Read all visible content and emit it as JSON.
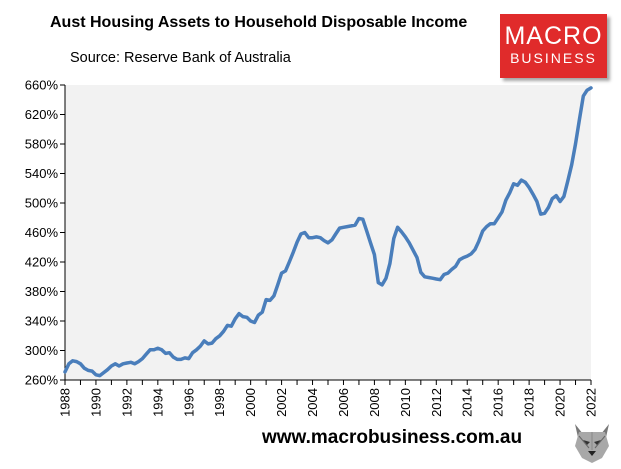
{
  "header": {
    "title": "Aust Housing Assets to Household Disposable Income",
    "subtitle": "Source: Reserve Bank of Australia"
  },
  "logo": {
    "line1": "MACRO",
    "line2": "BUSINESS",
    "color": "#e02b2b"
  },
  "footer": {
    "url": "www.macrobusiness.com.au",
    "icon": "wolf-head-icon"
  },
  "chart_data": {
    "type": "line",
    "title": "Aust Housing Assets to Household Disposable Income",
    "subtitle": "Source: Reserve Bank of Australia",
    "xlabel": "",
    "ylabel": "",
    "xlim": [
      1988,
      2022
    ],
    "ylim": [
      260,
      660
    ],
    "yticks": [
      260,
      300,
      340,
      380,
      420,
      460,
      500,
      540,
      580,
      620,
      660
    ],
    "ytick_labels": [
      "260%",
      "300%",
      "340%",
      "380%",
      "420%",
      "460%",
      "500%",
      "540%",
      "580%",
      "620%",
      "660%"
    ],
    "xticks": [
      1988,
      1990,
      1992,
      1994,
      1996,
      1998,
      2000,
      2002,
      2004,
      2006,
      2008,
      2010,
      2012,
      2014,
      2016,
      2018,
      2020,
      2022
    ],
    "xtick_labels": [
      "1988",
      "1990",
      "1992",
      "1994",
      "1996",
      "1998",
      "2000",
      "2002",
      "2004",
      "2006",
      "2008",
      "2010",
      "2012",
      "2014",
      "2016",
      "2018",
      "2020",
      "2022"
    ],
    "grid": false,
    "plot_background": "#f2f2f2",
    "series": [
      {
        "color": "#4a7ebb",
        "x": [
          1988.0,
          1988.25,
          1988.5,
          1988.75,
          1989.0,
          1989.25,
          1989.5,
          1989.75,
          1990.0,
          1990.25,
          1990.5,
          1990.75,
          1991.0,
          1991.25,
          1991.5,
          1991.75,
          1992.0,
          1992.25,
          1992.5,
          1992.75,
          1993.0,
          1993.25,
          1993.5,
          1993.75,
          1994.0,
          1994.25,
          1994.5,
          1994.75,
          1995.0,
          1995.25,
          1995.5,
          1995.75,
          1996.0,
          1996.25,
          1996.5,
          1996.75,
          1997.0,
          1997.25,
          1997.5,
          1997.75,
          1998.0,
          1998.25,
          1998.5,
          1998.75,
          1999.0,
          1999.25,
          1999.5,
          1999.75,
          2000.0,
          2000.25,
          2000.5,
          2000.75,
          2001.0,
          2001.25,
          2001.5,
          2001.75,
          2002.0,
          2002.25,
          2002.5,
          2002.75,
          2003.0,
          2003.25,
          2003.5,
          2003.75,
          2004.0,
          2004.25,
          2004.5,
          2004.75,
          2005.0,
          2005.25,
          2005.5,
          2005.75,
          2006.0,
          2006.25,
          2006.5,
          2006.75,
          2007.0,
          2007.25,
          2007.5,
          2007.75,
          2008.0,
          2008.25,
          2008.5,
          2008.75,
          2009.0,
          2009.25,
          2009.5,
          2009.75,
          2010.0,
          2010.25,
          2010.5,
          2010.75,
          2011.0,
          2011.25,
          2011.5,
          2011.75,
          2012.0,
          2012.25,
          2012.5,
          2012.75,
          2013.0,
          2013.25,
          2013.5,
          2013.75,
          2014.0,
          2014.25,
          2014.5,
          2014.75,
          2015.0,
          2015.25,
          2015.5,
          2015.75,
          2016.0,
          2016.25,
          2016.5,
          2016.75,
          2017.0,
          2017.25,
          2017.5,
          2017.75,
          2018.0,
          2018.25,
          2018.5,
          2018.75,
          2019.0,
          2019.25,
          2019.5,
          2019.75,
          2020.0,
          2020.25,
          2020.5,
          2020.75,
          2021.0,
          2021.25,
          2021.5,
          2021.75,
          2022.0
        ],
        "values": [
          271,
          282,
          286,
          285,
          282,
          276,
          273,
          272,
          267,
          266,
          270,
          274,
          279,
          282,
          279,
          282,
          283,
          284,
          282,
          285,
          289,
          295,
          301,
          301,
          303,
          301,
          296,
          297,
          291,
          288,
          288,
          290,
          289,
          297,
          301,
          306,
          313,
          309,
          310,
          316,
          320,
          326,
          334,
          333,
          343,
          350,
          346,
          345,
          340,
          338,
          348,
          352,
          369,
          368,
          374,
          389,
          405,
          408,
          420,
          433,
          447,
          458,
          460,
          453,
          453,
          454,
          453,
          449,
          446,
          450,
          458,
          466,
          467,
          468,
          469,
          470,
          479,
          478,
          462,
          446,
          430,
          392,
          389,
          398,
          418,
          452,
          467,
          461,
          454,
          446,
          436,
          426,
          406,
          400,
          399,
          398,
          397,
          396,
          403,
          405,
          410,
          414,
          423,
          426,
          428,
          431,
          437,
          448,
          462,
          468,
          472,
          472,
          480,
          488,
          504,
          514,
          526,
          524,
          531,
          528,
          521,
          512,
          502,
          485,
          486,
          494,
          506,
          510,
          502,
          509,
          530,
          552,
          580,
          613,
          645,
          653,
          656
        ]
      }
    ]
  }
}
